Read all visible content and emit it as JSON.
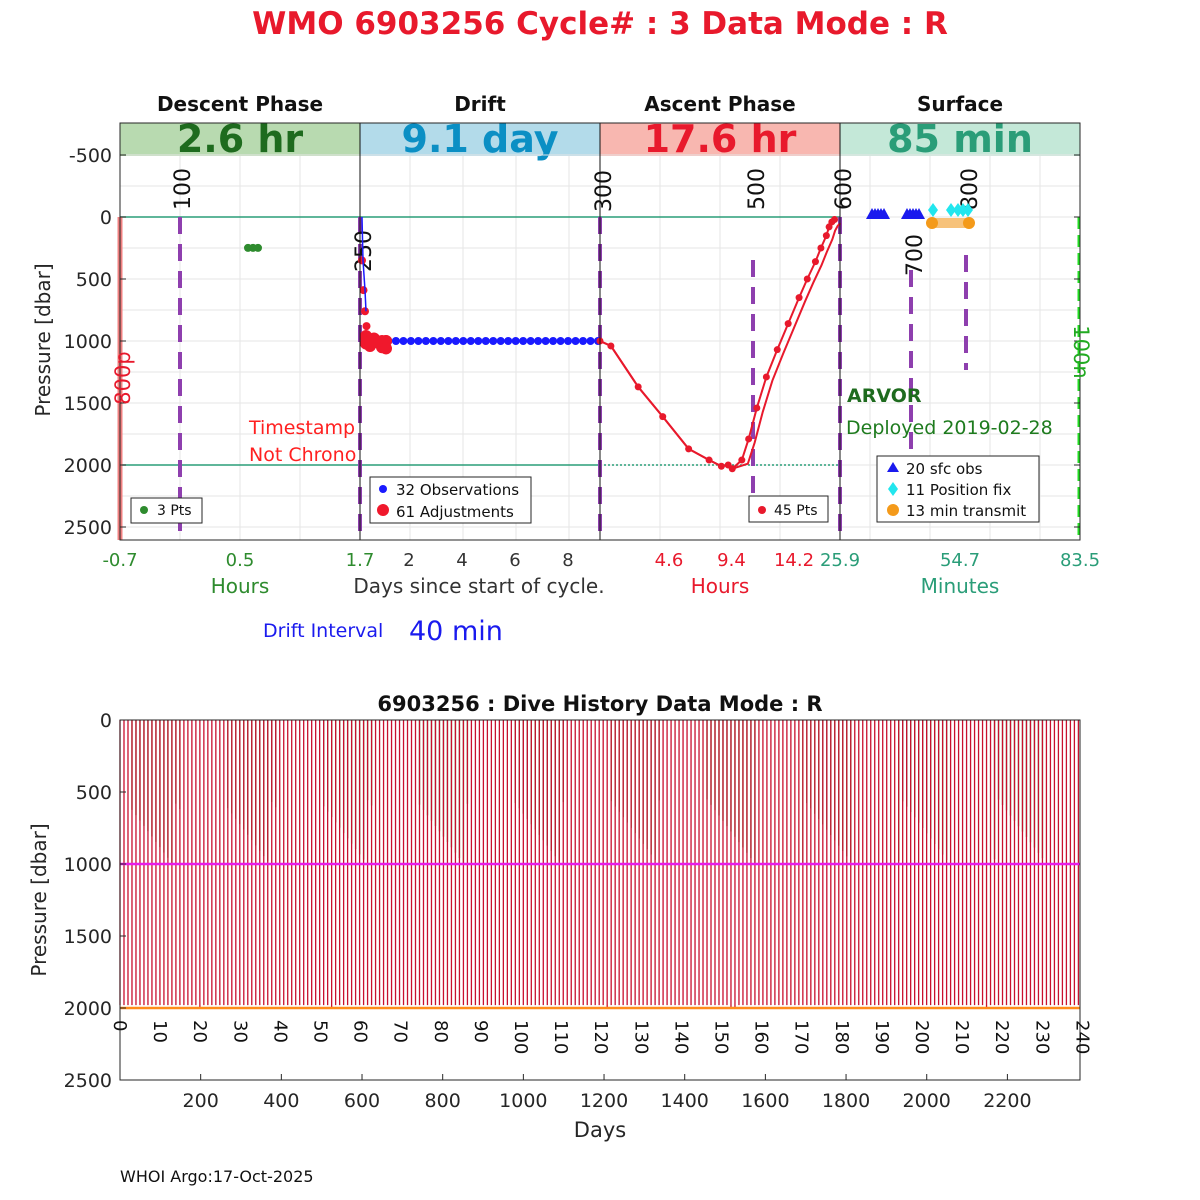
{
  "title": "WMO 6903256   Cycle# : 3   Data Mode : R",
  "chart_data": [
    {
      "type": "line",
      "name": "cycle-profile",
      "ylabel": "Pressure [dbar]",
      "yticks": [
        "-500",
        "0",
        "500",
        "1000",
        "1500",
        "2000",
        "2500"
      ],
      "ylim": [
        -750,
        2600
      ],
      "phases": [
        {
          "key": "descent",
          "name": "Descent Phase",
          "duration": "2.6 hr",
          "band_color": "#b8dab0",
          "text_color": "#1e6b1e",
          "axis_color": "#2e8b2e",
          "ticks": [
            "-0.7",
            "0.5",
            "1.7"
          ],
          "axis_label": "Hours"
        },
        {
          "key": "drift",
          "name": "Drift",
          "duration": "9.1 day",
          "band_color": "#b3dbea",
          "text_color": "#0b8fc4",
          "axis_color": "#333333",
          "ticks": [
            "2",
            "4",
            "6",
            "8"
          ],
          "axis_label": "Days since start of cycle."
        },
        {
          "key": "ascent",
          "name": "Ascent Phase",
          "duration": "17.6 hr",
          "band_color": "#f8b7b0",
          "text_color": "#e8192c",
          "axis_color": "#e8192c",
          "ticks": [
            "4.6",
            "9.4",
            "14.2"
          ],
          "axis_label": "Hours"
        },
        {
          "key": "surface",
          "name": "Surface",
          "duration": "85 min",
          "band_color": "#c4e8d8",
          "text_color": "#2a9d78",
          "axis_color": "#2a9d78",
          "ticks": [
            "25.9",
            "54.7",
            "83.5"
          ],
          "axis_label": "Minutes"
        }
      ],
      "reference_lines_dbar": [
        0,
        2000
      ],
      "vertical_markers": [
        {
          "label": "100",
          "phase": "descent"
        },
        {
          "label": "250",
          "phase": "drift"
        },
        {
          "label": "300",
          "phase": "ascent"
        },
        {
          "label": "500",
          "phase": "ascent"
        },
        {
          "label": "600",
          "phase": "ascent"
        },
        {
          "label": "700",
          "phase": "surface"
        },
        {
          "label": "800",
          "phase": "surface"
        }
      ],
      "side_labels": {
        "left": "800p",
        "right": "100n"
      },
      "descent_points": {
        "count_label": "3 Pts",
        "pressures": [
          120,
          120,
          120
        ]
      },
      "drift_points": {
        "legend": [
          "32 Observations",
          "61 Adjustments"
        ],
        "observation_pressures": [
          1000,
          1000,
          1000,
          1000,
          1000,
          1000,
          1000,
          1000,
          1000,
          1000,
          1000,
          1000,
          1000,
          1000,
          1000,
          1000,
          1000,
          1000,
          1000,
          1000,
          1000,
          1000,
          1000,
          1000,
          1000,
          1000,
          1000,
          1000,
          1000,
          1000,
          1000,
          1000
        ],
        "adjustment_pressures": [
          350,
          590,
          760,
          880,
          960,
          1000,
          1020,
          1030,
          980,
          1010,
          1050,
          1000,
          960,
          1040,
          990,
          1010,
          1000,
          1060,
          970,
          1000
        ]
      },
      "ascent_points": {
        "count_label": "45 Pts",
        "hours": [
          0,
          0.8,
          2.8,
          4.6,
          6.5,
          8.0,
          8.9,
          9.4,
          9.7,
          10.4,
          10.9,
          11.5,
          12.2,
          13.0,
          13.8,
          14.6,
          15.2,
          15.8,
          16.2,
          16.6,
          16.8,
          17.0,
          17.2
        ],
        "pressures": [
          1000,
          1040,
          1370,
          1610,
          1870,
          1960,
          2010,
          2000,
          2030,
          1960,
          1790,
          1540,
          1290,
          1070,
          860,
          650,
          500,
          360,
          250,
          150,
          80,
          40,
          20
        ]
      },
      "surface_legend": [
        "20 sfc obs",
        "11 Position fix",
        "13 min transmit"
      ],
      "float_model": "ARVOR",
      "deployed": "Deployed 2019-02-28",
      "timestamp_warning": [
        "Timestamp",
        "Not Chrono"
      ],
      "drift_interval_label": "Drift Interval",
      "drift_interval_value": "40 min"
    },
    {
      "type": "bar",
      "name": "dive-history",
      "title": "6903256 : Dive History      Data Mode : R",
      "xlabel": "Days",
      "ylabel": "Pressure [dbar]",
      "xticks": [
        "200",
        "400",
        "600",
        "800",
        "1000",
        "1200",
        "1400",
        "1600",
        "1800",
        "2000",
        "2200"
      ],
      "xlim": [
        0,
        2380
      ],
      "yticks": [
        "0",
        "500",
        "1000",
        "1500",
        "2000",
        "2500"
      ],
      "ylim": [
        0,
        2500
      ],
      "cycle_ticks": [
        "0",
        "10",
        "20",
        "30",
        "40",
        "50",
        "60",
        "70",
        "80",
        "90",
        "100",
        "110",
        "120",
        "130",
        "140",
        "150",
        "160",
        "170",
        "180",
        "190",
        "200",
        "210",
        "220",
        "230",
        "240"
      ],
      "park_pressure": 1000,
      "profile_pressure": 2000,
      "colors": {
        "profile": "#c8102e",
        "descent": "#2e8b2e",
        "drift": "#e81ce8",
        "bottom": "#ff8c1a"
      }
    }
  ],
  "footer": "WHOI Argo:17-Oct-2025"
}
